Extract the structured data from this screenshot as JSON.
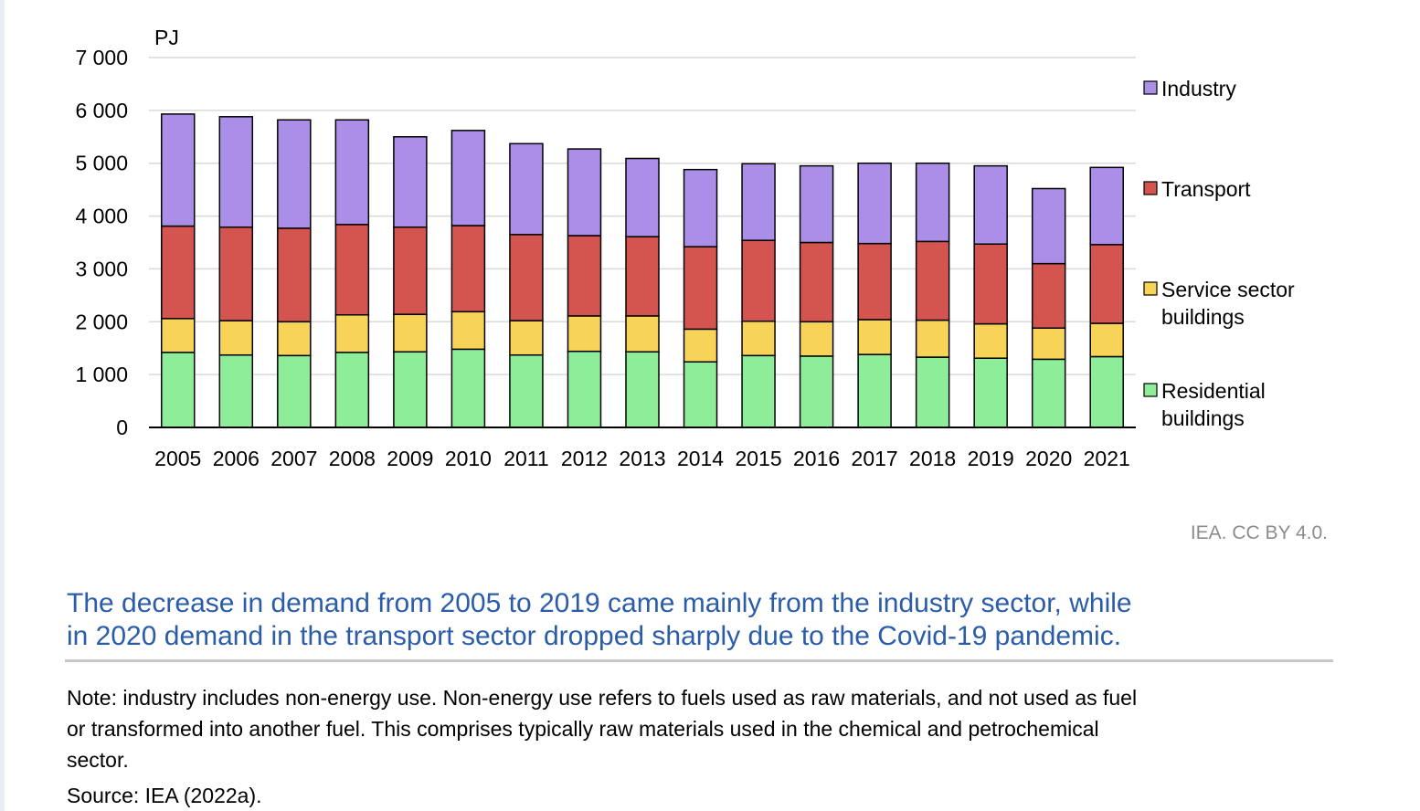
{
  "chart_data": {
    "type": "bar",
    "stacked": true,
    "unit_label": "PJ",
    "categories": [
      "2005",
      "2006",
      "2007",
      "2008",
      "2009",
      "2010",
      "2011",
      "2012",
      "2013",
      "2014",
      "2015",
      "2016",
      "2017",
      "2018",
      "2019",
      "2020",
      "2021"
    ],
    "ylim": [
      0,
      7000
    ],
    "yticks": [
      0,
      1000,
      2000,
      3000,
      4000,
      5000,
      6000,
      7000
    ],
    "ytick_labels": [
      "0",
      "1 000",
      "2 000",
      "3 000",
      "4 000",
      "5 000",
      "6 000",
      "7 000"
    ],
    "grid": true,
    "legend_position": "right",
    "series": [
      {
        "name": "Residential buildings",
        "legend_lines": [
          "Residential",
          "buildings"
        ],
        "color": "#8ded98",
        "values": [
          1420,
          1370,
          1360,
          1420,
          1430,
          1480,
          1370,
          1440,
          1430,
          1240,
          1360,
          1350,
          1380,
          1330,
          1310,
          1290,
          1340
        ]
      },
      {
        "name": "Service sector buildings",
        "legend_lines": [
          "Service sector",
          "buildings"
        ],
        "color": "#f7d358",
        "values": [
          640,
          650,
          640,
          710,
          710,
          710,
          650,
          670,
          680,
          620,
          650,
          650,
          660,
          700,
          650,
          590,
          630
        ]
      },
      {
        "name": "Transport",
        "legend_lines": [
          "Transport"
        ],
        "color": "#d45550",
        "values": [
          1750,
          1770,
          1770,
          1710,
          1650,
          1630,
          1630,
          1520,
          1500,
          1560,
          1530,
          1500,
          1440,
          1490,
          1510,
          1220,
          1490
        ]
      },
      {
        "name": "Industry",
        "legend_lines": [
          "Industry"
        ],
        "color": "#ab8ee7",
        "values": [
          2120,
          2090,
          2050,
          1980,
          1710,
          1800,
          1720,
          1640,
          1480,
          1460,
          1450,
          1450,
          1520,
          1480,
          1480,
          1420,
          1460
        ]
      }
    ]
  },
  "credit": "IEA. CC BY 4.0.",
  "caption": {
    "line1": "The decrease in demand from 2005 to 2019 came mainly from the industry sector, while",
    "line2": "in 2020 demand in the transport sector dropped sharply due to the Covid-19 pandemic."
  },
  "note": {
    "line1": "Note: industry includes non-energy use. Non-energy use refers to fuels used as raw materials, and not used as fuel",
    "line2": "or transformed into another fuel. This comprises typically raw materials used in the chemical and petrochemical",
    "line3": "sector."
  },
  "source": "Source: IEA (2022a)."
}
